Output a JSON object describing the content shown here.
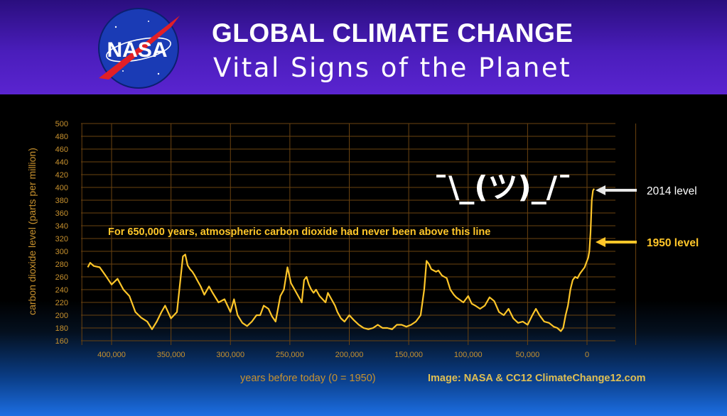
{
  "header": {
    "logo_text": "NASA",
    "title": "GLOBAL CLIMATE CHANGE",
    "subtitle": "Vital Signs of the Planet"
  },
  "colors": {
    "header_top": "#2a0e7e",
    "header_bottom": "#5a24d0",
    "grid": "#6b4310",
    "series": "#ffc629",
    "axis_text": "#c9922e",
    "annotation_text": "#ffc629",
    "credit_text": "#e0bf52"
  },
  "chart_data": {
    "type": "line",
    "ylabel": "carbon dioxide level (parts per million)",
    "xlabel": "years before today (0 = 1950)",
    "credit": "Image: NASA & CC12 ClimateChange12.com",
    "ylim": [
      160,
      500
    ],
    "yticks": [
      160,
      180,
      200,
      220,
      240,
      260,
      280,
      300,
      320,
      340,
      360,
      380,
      400,
      420,
      440,
      460,
      480,
      500
    ],
    "xlim": [
      -420000,
      50000
    ],
    "xticks": [
      400000,
      350000,
      300000,
      250000,
      200000,
      150000,
      100000,
      50000,
      0
    ],
    "xtick_labels": [
      "400,000",
      "350,000",
      "300,000",
      "250,000",
      "200,000",
      "150,000",
      "100,000",
      "50,000",
      "0"
    ],
    "grid": true,
    "series": [
      {
        "x": [
          -420000,
          -418000,
          -415000,
          -410000,
          -405000,
          -400000,
          -395000,
          -390000,
          -385000,
          -380000,
          -375000,
          -370000,
          -366000,
          -362000,
          -358000,
          -355000,
          -350000,
          -345000,
          -340000,
          -338000,
          -336000,
          -334000,
          -332000,
          -330000,
          -328000,
          -325000,
          -322000,
          -318000,
          -315000,
          -310000,
          -305000,
          -300000,
          -297000,
          -294000,
          -290000,
          -286000,
          -282000,
          -278000,
          -275000,
          -272000,
          -268000,
          -265000,
          -262000,
          -258000,
          -255000,
          -252000,
          -249000,
          -246000,
          -243000,
          -240000,
          -238000,
          -236000,
          -234000,
          -232000,
          -230000,
          -228000,
          -225000,
          -220000,
          -218000,
          -215000,
          -212000,
          -210000,
          -207000,
          -204000,
          -200000,
          -196000,
          -192000,
          -188000,
          -184000,
          -180000,
          -176000,
          -172000,
          -168000,
          -164000,
          -160000,
          -156000,
          -152000,
          -148000,
          -144000,
          -140000,
          -137000,
          -135000,
          -133000,
          -131000,
          -129000,
          -127000,
          -125000,
          -122000,
          -118000,
          -115000,
          -112000,
          -110000,
          -107000,
          -104000,
          -100000,
          -97000,
          -94000,
          -90000,
          -86000,
          -82000,
          -78000,
          -74000,
          -70000,
          -66000,
          -62000,
          -58000,
          -54000,
          -50000,
          -46000,
          -43000,
          -40000,
          -36000,
          -32000,
          -28000,
          -25000,
          -22000,
          -20000,
          -18000,
          -16000,
          -14000,
          -12000,
          -10000,
          -8000,
          -6000,
          -4000,
          -2000,
          -1000,
          0,
          1000,
          2000,
          3000,
          4000,
          5000,
          6000
        ],
        "values": [
          275,
          282,
          277,
          275,
          262,
          248,
          257,
          240,
          230,
          205,
          196,
          190,
          178,
          190,
          205,
          215,
          195,
          205,
          292,
          295,
          278,
          272,
          268,
          262,
          255,
          245,
          232,
          245,
          235,
          220,
          225,
          205,
          225,
          200,
          188,
          183,
          190,
          200,
          200,
          215,
          210,
          198,
          190,
          230,
          240,
          275,
          250,
          240,
          230,
          220,
          255,
          260,
          248,
          240,
          235,
          240,
          230,
          220,
          235,
          225,
          215,
          205,
          195,
          190,
          200,
          192,
          185,
          180,
          178,
          180,
          185,
          180,
          180,
          178,
          185,
          185,
          182,
          185,
          190,
          200,
          240,
          285,
          280,
          272,
          270,
          268,
          270,
          262,
          258,
          240,
          232,
          228,
          224,
          220,
          230,
          218,
          215,
          210,
          215,
          228,
          222,
          205,
          200,
          210,
          195,
          188,
          190,
          185,
          200,
          210,
          200,
          190,
          188,
          182,
          180,
          175,
          180,
          200,
          215,
          240,
          255,
          260,
          258,
          265,
          270,
          275,
          280,
          285,
          290,
          300,
          330,
          380,
          395,
          398
        ]
      }
    ],
    "annotations": {
      "line_caption": "For 650,000 years, atmospheric carbon dioxide had never been above this line",
      "threshold": 300,
      "shrug": "¯\\_(ツ)_/¯",
      "level_2014": "2014 level",
      "level_2014_value": 398,
      "level_1950": "1950 level",
      "level_1950_value": 312
    }
  }
}
